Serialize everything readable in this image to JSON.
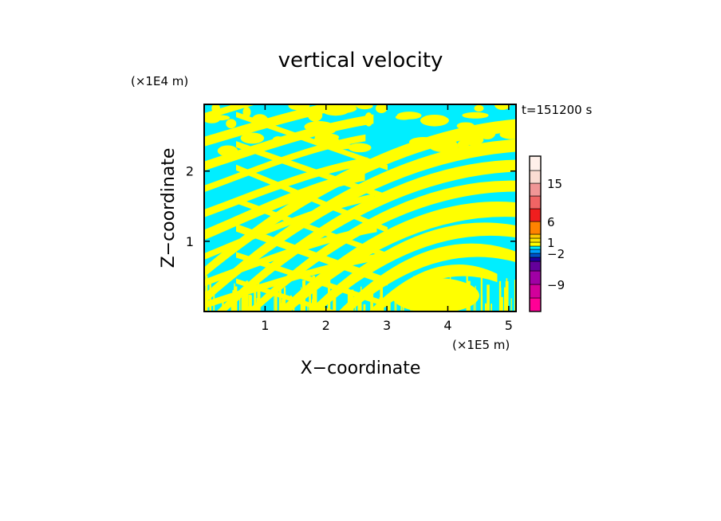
{
  "chart_data": {
    "type": "heatmap",
    "title": "vertical velocity",
    "xlabel": "X−coordinate",
    "ylabel": "Z−coordinate",
    "x_multiplier_label": "(×1E5 m)",
    "y_multiplier_label": "(×1E4 m)",
    "time_label": "t=151200 s",
    "xlim": [
      0,
      5.12
    ],
    "ylim": [
      0,
      2.95
    ],
    "x_ticks": [
      1,
      2,
      3,
      4,
      5
    ],
    "x_tick_labels": [
      "1",
      "2",
      "3",
      "4",
      "5"
    ],
    "y_ticks": [
      1,
      2
    ],
    "y_tick_labels": [
      "1",
      "2"
    ],
    "field_colors": {
      "positive": "#ffff00",
      "negative": "#00eeff"
    },
    "colorbar": {
      "levels": [
        {
          "max": -12,
          "color": "#ff0096"
        },
        {
          "max": -9,
          "color": "#d2009b"
        },
        {
          "max": -6,
          "color": "#a000a5"
        },
        {
          "max": -4,
          "color": "#64009b"
        },
        {
          "max": -3,
          "color": "#1e00a0"
        },
        {
          "max": -2,
          "color": "#0050c8"
        },
        {
          "max": -1,
          "color": "#00a0ff"
        },
        {
          "max": 0,
          "color": "#00eeff"
        },
        {
          "max": 1,
          "color": "#ffff00"
        },
        {
          "max": 2,
          "color": "#ffe600"
        },
        {
          "max": 3,
          "color": "#ffc800"
        },
        {
          "max": 6,
          "color": "#ff8200"
        },
        {
          "max": 9,
          "color": "#f01e1e"
        },
        {
          "max": 12,
          "color": "#f06464"
        },
        {
          "max": 15,
          "color": "#f09696"
        },
        {
          "max": 20,
          "color": "#fadcd2"
        },
        {
          "max": 30,
          "color": "#fff0ea"
        }
      ],
      "labels": [
        {
          "value": -9,
          "text": "−9"
        },
        {
          "value": -2,
          "text": "−2"
        },
        {
          "value": 1,
          "text": "1"
        },
        {
          "value": 6,
          "text": "6"
        },
        {
          "value": 15,
          "text": "15"
        }
      ]
    }
  }
}
